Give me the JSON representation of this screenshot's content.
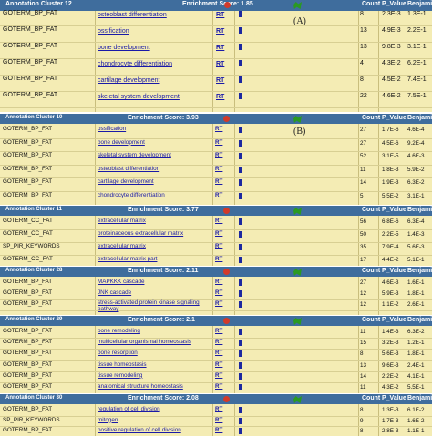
{
  "columns": {
    "count": "Count",
    "pvalue": "P_Value",
    "benj": "Benjamini"
  },
  "clusters": [
    {
      "name": "Annotation Cluster 12",
      "score": "Enrichment Score: 1.85",
      "panel_label": "(A)",
      "rows": [
        {
          "cat": "GOTERM_BP_FAT",
          "term": "osteoblast differentiation",
          "count": "8",
          "p": "2.3E-3",
          "b": "1.3E-1"
        },
        {
          "cat": "GOTERM_BP_FAT",
          "term": "ossification",
          "count": "13",
          "p": "4.9E-3",
          "b": "2.2E-1"
        },
        {
          "cat": "GOTERM_BP_FAT",
          "term": "bone development",
          "count": "13",
          "p": "9.8E-3",
          "b": "3.1E-1"
        },
        {
          "cat": "GOTERM_BP_FAT",
          "term": "chondrocyte differentiation",
          "count": "4",
          "p": "4.3E-2",
          "b": "6.2E-1"
        },
        {
          "cat": "GOTERM_BP_FAT",
          "term": "cartilage development",
          "count": "8",
          "p": "4.5E-2",
          "b": "7.4E-1"
        },
        {
          "cat": "GOTERM_BP_FAT",
          "term": "skeletal system development",
          "count": "22",
          "p": "4.6E-2",
          "b": "7.5E-1"
        }
      ]
    },
    {
      "name": "Annotation Cluster 10",
      "score": "Enrichment Score: 3.93",
      "panel_label": "(B)",
      "rows": [
        {
          "cat": "GOTERM_BP_FAT",
          "term": "ossification",
          "count": "27",
          "p": "1.7E-6",
          "b": "4.6E-4"
        },
        {
          "cat": "GOTERM_BP_FAT",
          "term": "bone development",
          "count": "27",
          "p": "4.5E-6",
          "b": "9.2E-4"
        },
        {
          "cat": "GOTERM_BP_FAT",
          "term": "skeletal system development",
          "count": "52",
          "p": "3.1E-5",
          "b": "4.6E-3"
        },
        {
          "cat": "GOTERM_BP_FAT",
          "term": "osteoblast differentiation",
          "count": "11",
          "p": "1.8E-3",
          "b": "5.9E-2"
        },
        {
          "cat": "GOTERM_BP_FAT",
          "term": "cartilage development",
          "count": "14",
          "p": "1.9E-3",
          "b": "6.3E-2"
        },
        {
          "cat": "GOTERM_BP_FAT",
          "term": "chondrocyte differentiation",
          "count": "5",
          "p": "5.5E-2",
          "b": "3.1E-1"
        }
      ]
    },
    {
      "name": "Annotation Cluster 11",
      "score": "Enrichment Score: 3.77",
      "panel_label": "",
      "rows": [
        {
          "cat": "GOTERM_CC_FAT",
          "term": "extracellular matrix",
          "count": "56",
          "p": "6.8E-6",
          "b": "6.3E-4"
        },
        {
          "cat": "GOTERM_CC_FAT",
          "term": "proteinaceous extracellular matrix",
          "count": "50",
          "p": "2.2E-5",
          "b": "1.4E-3"
        },
        {
          "cat": "SP_PIR_KEYWORDS",
          "term": "extracellular matrix",
          "count": "35",
          "p": "7.9E-4",
          "b": "5.6E-3"
        },
        {
          "cat": "GOTERM_CC_FAT",
          "term": "extracellular matrix part",
          "count": "17",
          "p": "4.4E-2",
          "b": "5.1E-1"
        }
      ]
    },
    {
      "name": "Annotation Cluster 28",
      "score": "Enrichment Score: 2.11",
      "panel_label": "",
      "rows": [
        {
          "cat": "GOTERM_BP_FAT",
          "term": "MAPKKK cascade",
          "count": "27",
          "p": "4.6E-3",
          "b": "1.6E-1"
        },
        {
          "cat": "GOTERM_BP_FAT",
          "term": "JNK cascade",
          "count": "12",
          "p": "5.9E-3",
          "b": "1.8E-1"
        },
        {
          "cat": "GOTERM_BP_FAT",
          "term": "stress-activated protein kinase signaling pathway",
          "count": "12",
          "p": "1.1E-2",
          "b": "2.6E-1"
        }
      ]
    },
    {
      "name": "Annotation Cluster 29",
      "score": "Enrichment Score: 2.1",
      "panel_label": "",
      "rows": [
        {
          "cat": "GOTERM_BP_FAT",
          "term": "bone remodeling",
          "count": "11",
          "p": "1.4E-3",
          "b": "6.3E-2"
        },
        {
          "cat": "GOTERM_BP_FAT",
          "term": "multicellular organismal homeostasis",
          "count": "15",
          "p": "3.2E-3",
          "b": "1.2E-1"
        },
        {
          "cat": "GOTERM_BP_FAT",
          "term": "bone resorption",
          "count": "8",
          "p": "5.6E-3",
          "b": "1.8E-1"
        },
        {
          "cat": "GOTERM_BP_FAT",
          "term": "tissue homeostasis",
          "count": "13",
          "p": "9.6E-3",
          "b": "2.4E-1"
        },
        {
          "cat": "GOTERM_BP_FAT",
          "term": "tissue remodeling",
          "count": "14",
          "p": "2.2E-2",
          "b": "4.1E-1"
        },
        {
          "cat": "GOTERM_BP_FAT",
          "term": "anatomical structure homeostasis",
          "count": "11",
          "p": "4.3E-2",
          "b": "5.5E-1"
        }
      ]
    },
    {
      "name": "Annotation Cluster 30",
      "score": "Enrichment Score: 2.08",
      "panel_label": "",
      "rows": [
        {
          "cat": "GOTERM_BP_FAT",
          "term": "regulation of cell division",
          "count": "8",
          "p": "1.3E-3",
          "b": "6.1E-2"
        },
        {
          "cat": "SP_PIR_KEYWORDS",
          "term": "mitogen",
          "count": "9",
          "p": "1.7E-3",
          "b": "1.6E-2"
        },
        {
          "cat": "GOTERM_BP_FAT",
          "term": "positive regulation of cell division",
          "count": "8",
          "p": "2.8E-3",
          "b": "1.1E-1"
        }
      ]
    }
  ],
  "link_label": "RT"
}
